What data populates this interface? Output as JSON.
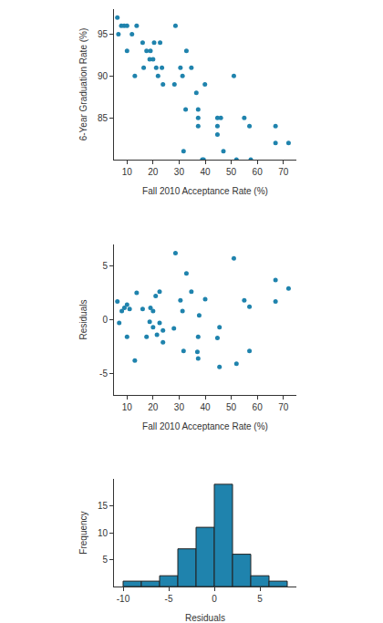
{
  "chart_data": [
    {
      "type": "scatter",
      "x_label": "Fall 2010 Acceptance Rate (%)",
      "y_label": "6-Year Graduation Rate (%)",
      "color": "#1f83ad",
      "x": [
        6.3,
        7.8,
        8.9,
        10,
        6.7,
        11.9,
        10,
        13.7,
        13,
        16,
        17.5,
        19,
        18.7,
        20,
        20.4,
        22.7,
        21.2,
        23.4,
        21.9,
        23.8,
        16.4,
        28.6,
        28.2,
        30.5,
        31.3,
        32.8,
        34.7,
        36.6,
        39.9,
        31.7,
        32.5,
        37.3,
        37.3,
        37.3,
        38.9,
        39.4,
        44.7,
        44.7,
        44.7,
        46,
        47,
        51,
        52,
        55,
        57,
        57.5,
        67,
        67,
        72
      ],
      "values": [
        97,
        96,
        96,
        96,
        95,
        95,
        93,
        96,
        90,
        94,
        93,
        93,
        92,
        92,
        94,
        94,
        91,
        91,
        90,
        89,
        91,
        96,
        89,
        91,
        90,
        93,
        91,
        88,
        89,
        81,
        86,
        86,
        85,
        84,
        80,
        80,
        85,
        84,
        83,
        85,
        81,
        90,
        80,
        85,
        84,
        80,
        84,
        82,
        82
      ],
      "xlim": [
        5,
        75
      ],
      "xticks": [
        10,
        20,
        30,
        40,
        50,
        60,
        70
      ],
      "ylim": [
        80,
        98
      ],
      "yticks": [
        85,
        90,
        95
      ]
    },
    {
      "type": "scatter",
      "x_label": "Fall 2010 Acceptance Rate (%)",
      "y_label": "Residuals",
      "color": "#1f83ad",
      "x": [
        6.3,
        7,
        8,
        9,
        10,
        11,
        10,
        13,
        13.7,
        16,
        17.5,
        18.7,
        19,
        20,
        20,
        21,
        22.5,
        21.5,
        22.5,
        23.8,
        23.8,
        28,
        28.6,
        30.5,
        31.3,
        32.8,
        31.7,
        34.7,
        37,
        37.3,
        37.3,
        37.7,
        40,
        44.7,
        45.5,
        45.5,
        51,
        52,
        55,
        57,
        57,
        67,
        67,
        72
      ],
      "values": [
        1.7,
        -0.3,
        0.8,
        1.1,
        1.4,
        1,
        -1.6,
        -3.8,
        2.5,
        1,
        -1.6,
        -0.2,
        1.1,
        0.8,
        -0.7,
        2.2,
        2.6,
        -1.4,
        -0.3,
        -2.1,
        -1,
        -0.8,
        6.2,
        1.8,
        0.8,
        4.3,
        -2.9,
        2.6,
        -3,
        -3.6,
        -1.6,
        0.4,
        1.9,
        -1.7,
        -0.7,
        -4.4,
        5.7,
        -4.1,
        1.8,
        1.2,
        -2.9,
        3.7,
        1.7,
        2.9
      ],
      "xlim": [
        5,
        75
      ],
      "xticks": [
        10,
        20,
        30,
        40,
        50,
        60,
        70
      ],
      "ylim": [
        -7,
        7
      ],
      "yticks": [
        -5,
        0,
        5
      ]
    },
    {
      "type": "histogram",
      "x_label": "Residuals",
      "y_label": "Frequency",
      "color": "#1f83ad",
      "bins": [
        -10,
        -8,
        -6,
        -4,
        -2,
        0,
        2,
        4,
        6,
        8
      ],
      "values": [
        1,
        1,
        2,
        7,
        11,
        19,
        6,
        2,
        1
      ],
      "xlim": [
        -11,
        9
      ],
      "xticks": [
        -10,
        -5,
        0,
        5
      ],
      "ylim": [
        0,
        20
      ],
      "yticks": [
        5,
        10,
        15
      ]
    }
  ]
}
